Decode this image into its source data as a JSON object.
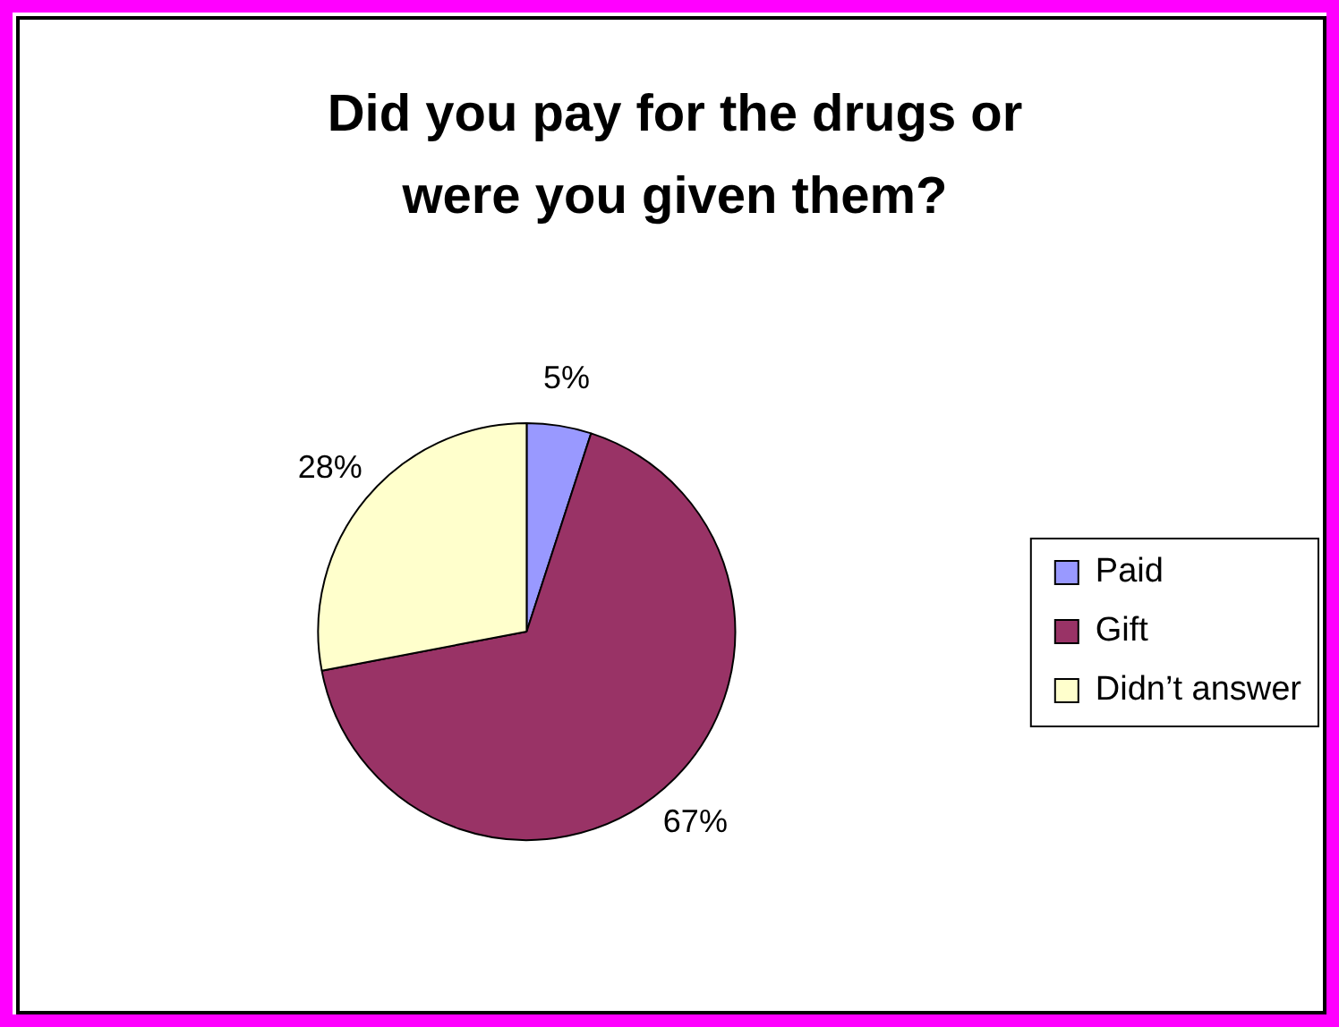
{
  "chart_data": {
    "type": "pie",
    "title": "Did you pay for the drugs or were you given them?",
    "categories": [
      "Paid",
      "Gift",
      "Didn’t answer"
    ],
    "values": [
      5,
      67,
      28
    ],
    "colors": [
      "#9999ff",
      "#993366",
      "#ffffcc"
    ],
    "value_labels": [
      "5%",
      "67%",
      "28%"
    ],
    "legend": "right"
  }
}
